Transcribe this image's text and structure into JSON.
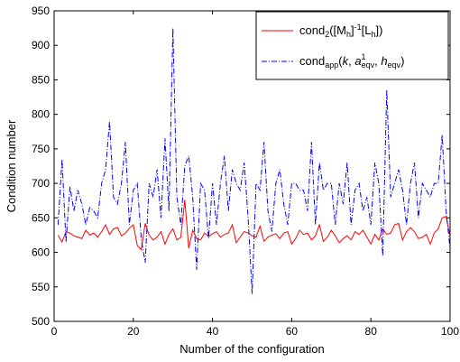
{
  "chart_data": {
    "type": "line",
    "xlabel": "Number of the configuration",
    "ylabel": "Condition number",
    "xlim": [
      0,
      100
    ],
    "ylim": [
      500,
      950
    ],
    "xticks": [
      0,
      20,
      40,
      60,
      80,
      100
    ],
    "yticks": [
      500,
      550,
      600,
      650,
      700,
      750,
      800,
      850,
      900,
      950
    ],
    "grid": false,
    "legend_position": "top-right",
    "legend": [
      {
        "main": "cond",
        "sub": "2",
        "rest": "([M",
        "sub2": "h",
        "sup": "]",
        "sup_exp": "-1",
        "tail": "[L",
        "sub3": "h",
        "end": "])"
      },
      {
        "main": "cond",
        "sub": "app",
        "rest": "(k, a",
        "sup": "1",
        "sub2": "eqv",
        "tail": ", h",
        "sub3": "eqv",
        "end": ")"
      }
    ],
    "series": [
      {
        "name": "cond2([Mh]^-1[Lh])",
        "color": "#ff0000",
        "style": "solid",
        "x": [
          1,
          2,
          3,
          4,
          5,
          6,
          7,
          8,
          9,
          10,
          11,
          12,
          13,
          14,
          15,
          16,
          17,
          18,
          19,
          20,
          21,
          22,
          23,
          24,
          25,
          26,
          27,
          28,
          29,
          30,
          31,
          32,
          33,
          34,
          35,
          36,
          37,
          38,
          39,
          40,
          41,
          42,
          43,
          44,
          45,
          46,
          47,
          48,
          49,
          50,
          51,
          52,
          53,
          54,
          55,
          56,
          57,
          58,
          59,
          60,
          61,
          62,
          63,
          64,
          65,
          66,
          67,
          68,
          69,
          70,
          71,
          72,
          73,
          74,
          75,
          76,
          77,
          78,
          79,
          80,
          81,
          82,
          83,
          84,
          85,
          86,
          87,
          88,
          89,
          90,
          91,
          92,
          93,
          94,
          95,
          96,
          97,
          98,
          99,
          100
        ],
        "values": [
          625,
          615,
          630,
          628,
          624,
          622,
          620,
          632,
          625,
          628,
          622,
          630,
          640,
          626,
          634,
          636,
          624,
          628,
          635,
          640,
          610,
          604,
          642,
          625,
          618,
          622,
          630,
          612,
          626,
          634,
          618,
          622,
          676,
          606,
          632,
          620,
          618,
          628,
          623,
          627,
          630,
          622,
          626,
          628,
          640,
          614,
          622,
          630,
          628,
          624,
          622,
          638,
          616,
          622,
          625,
          627,
          620,
          628,
          630,
          612,
          620,
          632,
          626,
          628,
          618,
          624,
          640,
          616,
          622,
          632,
          624,
          614,
          620,
          624,
          618,
          630,
          626,
          632,
          622,
          612,
          626,
          618,
          634,
          626,
          628,
          640,
          642,
          618,
          630,
          636,
          630,
          620,
          622,
          626,
          612,
          628,
          634,
          650,
          652,
          624
        ]
      },
      {
        "name": "condapp(k, a1eqv, heqv)",
        "color": "#0000ff",
        "style": "dashdot",
        "x": [
          1,
          2,
          3,
          4,
          5,
          6,
          7,
          8,
          9,
          10,
          11,
          12,
          13,
          14,
          15,
          16,
          17,
          18,
          19,
          20,
          21,
          22,
          23,
          24,
          25,
          26,
          27,
          28,
          29,
          30,
          31,
          32,
          33,
          34,
          35,
          36,
          37,
          38,
          39,
          40,
          41,
          42,
          43,
          44,
          45,
          46,
          47,
          48,
          49,
          50,
          51,
          52,
          53,
          54,
          55,
          56,
          57,
          58,
          59,
          60,
          61,
          62,
          63,
          64,
          65,
          66,
          67,
          68,
          69,
          70,
          71,
          72,
          73,
          74,
          75,
          76,
          77,
          78,
          79,
          80,
          81,
          82,
          83,
          84,
          85,
          86,
          87,
          88,
          89,
          90,
          91,
          92,
          93,
          94,
          95,
          96,
          97,
          98,
          99,
          100
        ],
        "values": [
          640,
          735,
          615,
          695,
          660,
          690,
          670,
          640,
          665,
          660,
          650,
          700,
          720,
          790,
          680,
          670,
          700,
          760,
          640,
          690,
          700,
          620,
          585,
          700,
          680,
          720,
          650,
          765,
          660,
          925,
          680,
          640,
          725,
          740,
          680,
          575,
          700,
          690,
          620,
          700,
          640,
          700,
          740,
          660,
          720,
          700,
          690,
          730,
          650,
          540,
          700,
          690,
          760,
          660,
          630,
          700,
          720,
          670,
          640,
          700,
          700,
          690,
          690,
          660,
          760,
          640,
          730,
          690,
          700,
          700,
          640,
          700,
          670,
          730,
          640,
          690,
          700,
          660,
          680,
          640,
          730,
          700,
          595,
          835,
          680,
          700,
          720,
          690,
          640,
          700,
          730,
          650,
          700,
          690,
          680,
          700,
          700,
          770,
          660,
          605
        ]
      }
    ]
  }
}
